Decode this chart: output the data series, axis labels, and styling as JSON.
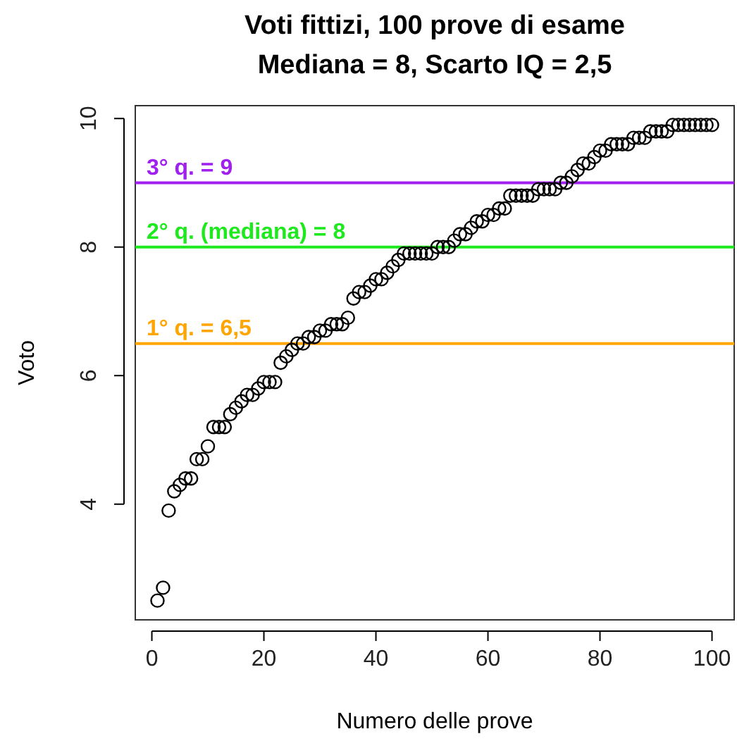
{
  "chart_data": {
    "type": "scatter",
    "title": "Voti fittizi, 100 prove di esame\nMediana = 8, Scarto IQ = 2,5",
    "xlabel": "Numero delle prove",
    "ylabel": "Voto",
    "marker": "circle",
    "grid": false,
    "x": [
      1,
      2,
      3,
      4,
      5,
      6,
      7,
      8,
      9,
      10,
      11,
      12,
      13,
      14,
      15,
      16,
      17,
      18,
      19,
      20,
      21,
      22,
      23,
      24,
      25,
      26,
      27,
      28,
      29,
      30,
      31,
      32,
      33,
      34,
      35,
      36,
      37,
      38,
      39,
      40,
      41,
      42,
      43,
      44,
      45,
      46,
      47,
      48,
      49,
      50,
      51,
      52,
      53,
      54,
      55,
      56,
      57,
      58,
      59,
      60,
      61,
      62,
      63,
      64,
      65,
      66,
      67,
      68,
      69,
      70,
      71,
      72,
      73,
      74,
      75,
      76,
      77,
      78,
      79,
      80,
      81,
      82,
      83,
      84,
      85,
      86,
      87,
      88,
      89,
      90,
      91,
      92,
      93,
      94,
      95,
      96,
      97,
      98,
      99,
      100
    ],
    "series": [
      {
        "color": "#000000",
        "values": [
          2.5,
          2.7,
          3.9,
          4.2,
          4.3,
          4.4,
          4.4,
          4.7,
          4.7,
          4.9,
          5.2,
          5.2,
          5.2,
          5.4,
          5.5,
          5.6,
          5.7,
          5.7,
          5.8,
          5.9,
          5.9,
          5.9,
          6.2,
          6.3,
          6.4,
          6.5,
          6.5,
          6.6,
          6.6,
          6.7,
          6.7,
          6.8,
          6.8,
          6.8,
          6.9,
          7.2,
          7.3,
          7.3,
          7.4,
          7.5,
          7.5,
          7.6,
          7.7,
          7.8,
          7.9,
          7.9,
          7.9,
          7.9,
          7.9,
          7.9,
          8.0,
          8.0,
          8.0,
          8.1,
          8.2,
          8.2,
          8.3,
          8.4,
          8.4,
          8.5,
          8.5,
          8.6,
          8.6,
          8.8,
          8.8,
          8.8,
          8.8,
          8.8,
          8.9,
          8.9,
          8.9,
          8.9,
          9.0,
          9.0,
          9.1,
          9.2,
          9.3,
          9.3,
          9.4,
          9.5,
          9.5,
          9.6,
          9.6,
          9.6,
          9.6,
          9.7,
          9.7,
          9.7,
          9.8,
          9.8,
          9.8,
          9.8,
          9.9,
          9.9,
          9.9,
          9.9,
          9.9,
          9.9,
          9.9,
          9.9
        ]
      }
    ],
    "xlim": [
      -2.96,
      103.96
    ],
    "ylim": [
      2.2,
      10.2
    ],
    "xticks": [
      0,
      20,
      40,
      60,
      80,
      100
    ],
    "yticks": [
      4,
      6,
      8,
      10
    ],
    "ref_lines": [
      {
        "axis": "y",
        "value": 6.5,
        "label": "1° q. = 6,5",
        "color": "#ffa500"
      },
      {
        "axis": "y",
        "value": 8,
        "label": "2° q. (mediana) = 8",
        "color": "#1ee81e"
      },
      {
        "axis": "y",
        "value": 9,
        "label": "3° q. = 9",
        "color": "#a020f0"
      }
    ]
  }
}
